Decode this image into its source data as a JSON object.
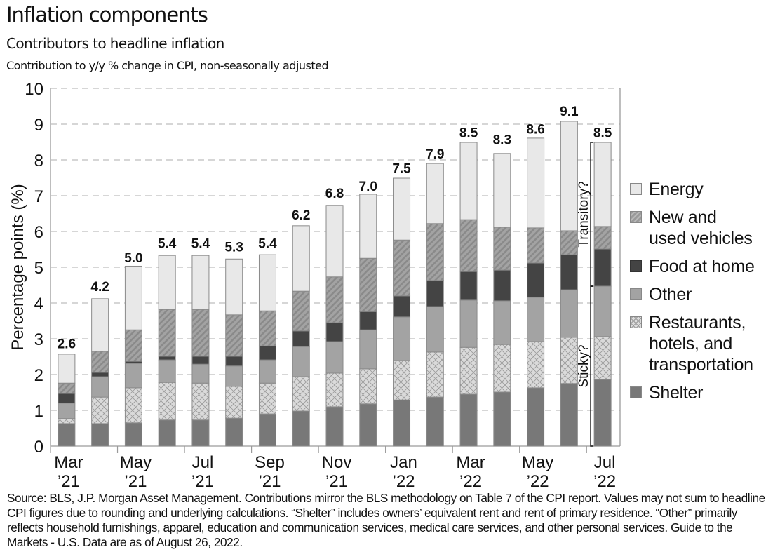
{
  "header": {
    "title": "Inflation components",
    "subtitle": "Contributors to headline inflation",
    "subsubtitle": "Contribution to y/y % change in CPI, non-seasonally adjusted"
  },
  "footnote": "Source: BLS, J.P. Morgan Asset Management. Contributions mirror the BLS methodology on Table 7 of the CPI report. Values may not sum to headline CPI figures due to rounding and underlying calculations. “Shelter” includes owners’ equivalent rent and rent of primary residence. “Other” primarily reflects household furnishings, apparel, education and communication services, medical care services, and other personal services. Guide to the Markets - U.S. Data are as of August 26, 2022.",
  "colors": {
    "energy": "#e8e8e8",
    "vehicles": "#a0a0a0",
    "food": "#444444",
    "other": "#a3a3a3",
    "restaurants": "#d9d9d9",
    "shelter": "#787878",
    "grid": "#bdbdbd",
    "axis": "#9a9a9a"
  },
  "chart_data": {
    "type": "bar",
    "stacked": true,
    "title": "Inflation components",
    "subtitle": "Contributors to headline inflation",
    "xlabel": "",
    "ylabel": "Percentage points (%)",
    "ylim": [
      0,
      10
    ],
    "yticks": [
      0,
      1,
      2,
      3,
      4,
      5,
      6,
      7,
      8,
      9,
      10
    ],
    "grid": true,
    "legend_position": "right",
    "categories": [
      "Mar '21",
      "Apr '21",
      "May '21",
      "Jun '21",
      "Jul '21",
      "Aug '21",
      "Sep '21",
      "Oct '21",
      "Nov '21",
      "Dec '21",
      "Jan '22",
      "Feb '22",
      "Mar '22",
      "Apr '22",
      "May '22",
      "Jun '22",
      "Jul '22"
    ],
    "xtick_labels": [
      {
        "index": 0,
        "line1": "Mar",
        "line2": "’21"
      },
      {
        "index": 2,
        "line1": "May",
        "line2": "’21"
      },
      {
        "index": 4,
        "line1": "Jul",
        "line2": "’21"
      },
      {
        "index": 6,
        "line1": "Sep",
        "line2": "’21"
      },
      {
        "index": 8,
        "line1": "Nov",
        "line2": "’21"
      },
      {
        "index": 10,
        "line1": "Jan",
        "line2": "’22"
      },
      {
        "index": 12,
        "line1": "Mar",
        "line2": "’22"
      },
      {
        "index": 14,
        "line1": "May",
        "line2": "’22"
      },
      {
        "index": 16,
        "line1": "Jul",
        "line2": "’22"
      }
    ],
    "totals": [
      2.6,
      4.2,
      5.0,
      5.4,
      5.4,
      5.3,
      5.4,
      6.2,
      6.8,
      7.0,
      7.5,
      7.9,
      8.5,
      8.3,
      8.6,
      9.1,
      8.5
    ],
    "total_labels": [
      "2.6",
      "4.2",
      "5.0",
      "5.4",
      "5.4",
      "5.3",
      "5.4",
      "6.2",
      "6.8",
      "7.0",
      "7.5",
      "7.9",
      "8.5",
      "8.3",
      "8.6",
      "9.1",
      "8.5"
    ],
    "series": [
      {
        "name": "Shelter",
        "key": "shelter",
        "values": [
          0.63,
          0.63,
          0.65,
          0.73,
          0.73,
          0.78,
          0.9,
          0.98,
          1.1,
          1.18,
          1.29,
          1.37,
          1.45,
          1.51,
          1.63,
          1.75,
          1.86
        ]
      },
      {
        "name": "Restaurants, hotels, and transportation",
        "key": "restaurants",
        "values": [
          0.14,
          0.74,
          0.98,
          1.05,
          1.03,
          0.89,
          0.86,
          0.96,
          0.94,
          0.98,
          1.1,
          1.26,
          1.31,
          1.33,
          1.29,
          1.29,
          1.2
        ]
      },
      {
        "name": "Other",
        "key": "other",
        "values": [
          0.43,
          0.57,
          0.68,
          0.63,
          0.53,
          0.57,
          0.65,
          0.84,
          0.88,
          1.09,
          1.22,
          1.27,
          1.32,
          1.22,
          1.24,
          1.33,
          1.41
        ]
      },
      {
        "name": "Food at home",
        "key": "food",
        "values": [
          0.27,
          0.12,
          0.06,
          0.1,
          0.22,
          0.27,
          0.39,
          0.44,
          0.53,
          0.51,
          0.59,
          0.73,
          0.8,
          0.86,
          0.96,
          0.98,
          1.04
        ]
      },
      {
        "name": "New and used vehicles",
        "key": "vehicles",
        "values": [
          0.29,
          0.59,
          0.88,
          1.31,
          1.31,
          1.16,
          0.98,
          1.11,
          1.28,
          1.49,
          1.56,
          1.59,
          1.45,
          1.2,
          0.98,
          0.67,
          0.63
        ]
      },
      {
        "name": "Energy",
        "key": "energy",
        "values": [
          0.81,
          1.47,
          1.78,
          1.51,
          1.51,
          1.56,
          1.57,
          1.83,
          2.0,
          1.79,
          1.73,
          1.68,
          2.16,
          2.06,
          2.51,
          3.06,
          2.35
        ]
      }
    ],
    "annotations": [
      {
        "text": "Transitory?",
        "applies_to": "Jul '22",
        "range": [
          4.47,
          8.49
        ],
        "components": [
          "Energy",
          "New and used vehicles",
          "Food at home"
        ]
      },
      {
        "text": "Sticky?",
        "applies_to": "Jul '22",
        "range": [
          0,
          4.47
        ],
        "components": [
          "Other",
          "Restaurants, hotels, and transportation",
          "Shelter"
        ]
      }
    ]
  },
  "legend": {
    "items": [
      {
        "key": "energy",
        "label": "Energy"
      },
      {
        "key": "vehicles",
        "label": "New and\nused vehicles"
      },
      {
        "key": "food",
        "label": "Food at home"
      },
      {
        "key": "other",
        "label": "Other"
      },
      {
        "key": "restaurants",
        "label": "Restaurants,\nhotels, and\ntransportation"
      },
      {
        "key": "shelter",
        "label": "Shelter"
      }
    ]
  }
}
